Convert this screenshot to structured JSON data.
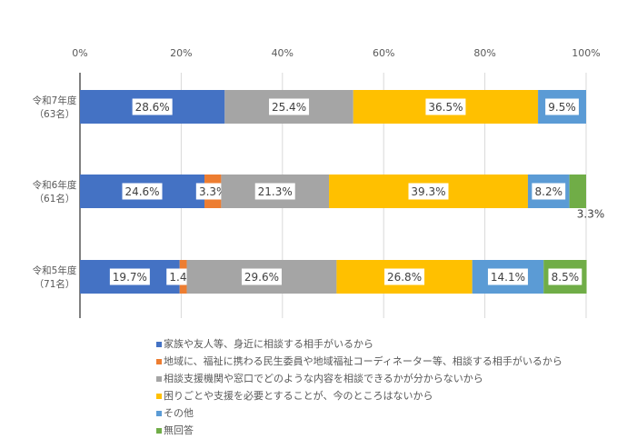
{
  "chart_data": {
    "type": "bar",
    "orientation": "horizontal",
    "stacked": "percent",
    "categories": [
      [
        "令和7年度",
        "（63名）"
      ],
      [
        "令和6年度",
        "（61名）"
      ],
      [
        "令和5年度",
        "（71名）"
      ]
    ],
    "xlim": [
      0,
      100
    ],
    "xticks": [
      "0%",
      "20%",
      "40%",
      "60%",
      "80%",
      "100%"
    ],
    "grid": true,
    "legend_position": "bottom",
    "series": [
      {
        "name": "家族や友人等、身近に相談する相手がいるから",
        "color": "#4472C4",
        "values": [
          28.6,
          24.6,
          19.7
        ]
      },
      {
        "name": "地域に、福祉に携わる民生委員や地域福祉コーディネーター等、相談する相手がいるから",
        "color": "#ED7D31",
        "values": [
          0,
          3.3,
          1.4
        ]
      },
      {
        "name": "相談支援機関や窓口でどのような内容を相談できるかが分からないから",
        "color": "#A5A5A5",
        "values": [
          25.4,
          21.3,
          29.6
        ]
      },
      {
        "name": "困りごとや支援を必要とすることが、今のところはないから",
        "color": "#FFC000",
        "values": [
          36.5,
          39.3,
          26.8
        ]
      },
      {
        "name": "その他",
        "color": "#5B9BD5",
        "values": [
          9.5,
          8.2,
          14.1
        ]
      },
      {
        "name": "無回答",
        "color": "#70AD47",
        "values": [
          0,
          3.3,
          8.5
        ]
      }
    ]
  }
}
